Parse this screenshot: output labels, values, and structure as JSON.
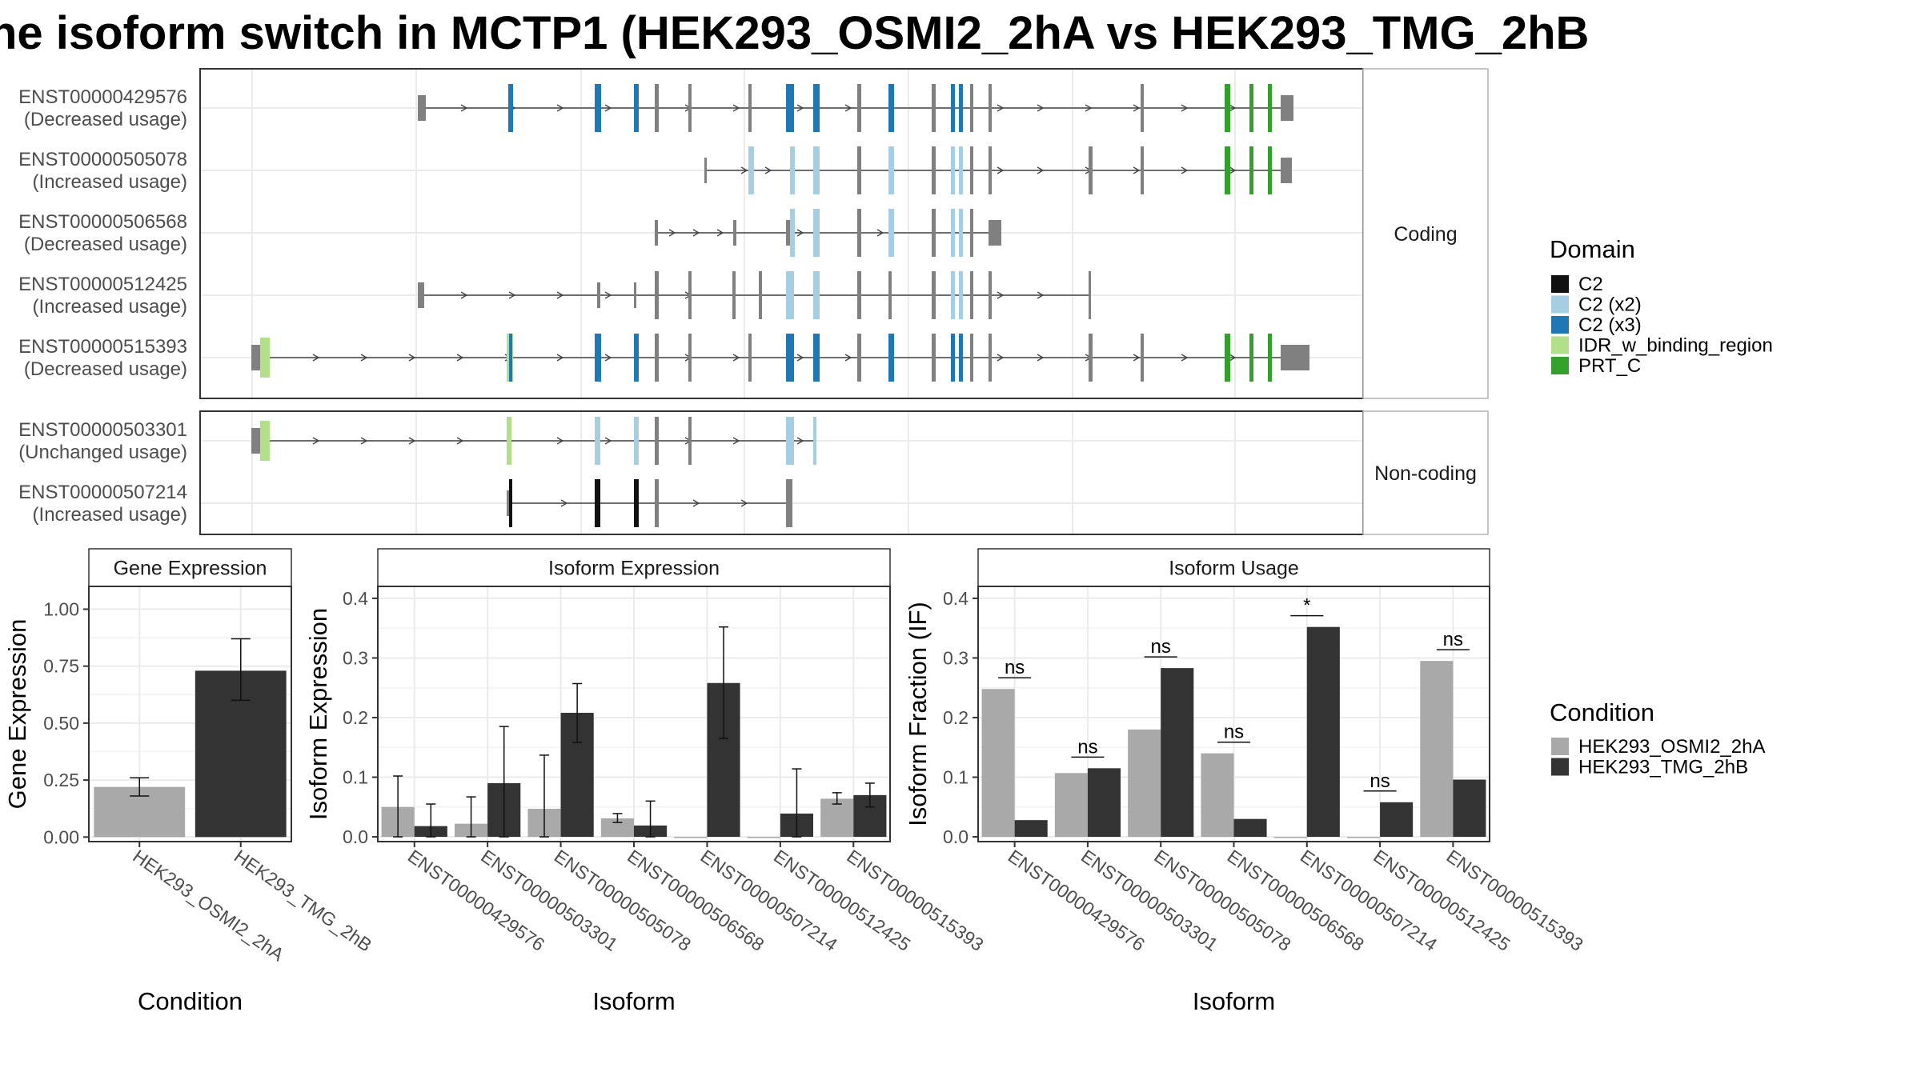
{
  "title": "he isoform switch in MCTP1 (HEK293_OSMI2_2hA vs HEK293_TMG_2hB",
  "colors": {
    "domain": {
      "C2": "#111111",
      "C2 (x2)": "#a6cee3",
      "C2 (x3)": "#1f78b4",
      "IDR_w_binding_region": "#b2df8a",
      "PRT_C": "#33a02c"
    },
    "exon": "#808080",
    "utr": "#808080",
    "cond1": "#a9a9a9",
    "cond2": "#333333",
    "strip_bg": "#ffffff",
    "grid": "#ebebeb"
  },
  "structure": {
    "groups": [
      {
        "label": "Coding",
        "rows": [
          {
            "id": "ENST00000429576",
            "usage": "(Decreased usage)"
          },
          {
            "id": "ENST00000505078",
            "usage": "(Increased usage)"
          },
          {
            "id": "ENST00000506568",
            "usage": "(Decreased usage)"
          },
          {
            "id": "ENST00000512425",
            "usage": "(Increased usage)"
          },
          {
            "id": "ENST00000515393",
            "usage": "(Decreased usage)"
          }
        ]
      },
      {
        "label": "Non-coding",
        "rows": [
          {
            "id": "ENST00000503301",
            "usage": "(Unchanged usage)"
          },
          {
            "id": "ENST00000507214",
            "usage": "(Increased usage)"
          }
        ]
      }
    ],
    "domain_legend": {
      "title": "Domain",
      "items": [
        "C2",
        "C2 (x2)",
        "C2 (x3)",
        "IDR_w_binding_region",
        "PRT_C"
      ]
    }
  },
  "chart_data": [
    {
      "type": "bar",
      "panel": "Gene Expression",
      "categories": [
        "HEK293_OSMI2_2hA",
        "HEK293_TMG_2hB"
      ],
      "values": [
        0.22,
        0.73
      ],
      "errors": [
        [
          0.18,
          0.26
        ],
        [
          0.6,
          0.87
        ]
      ],
      "xlabel": "Condition",
      "ylabel": "Gene Expression",
      "ylim": [
        -0.02,
        1.1
      ],
      "yticks": [
        "0.00",
        "0.25",
        "0.50",
        "0.75",
        "1.00"
      ],
      "ytick_values": [
        0,
        0.25,
        0.5,
        0.75,
        1.0
      ]
    },
    {
      "type": "bar",
      "panel": "Isoform Expression",
      "categories": [
        "ENST00000429576",
        "ENST00000503301",
        "ENST00000505078",
        "ENST00000506568",
        "ENST00000507214",
        "ENST00000512425",
        "ENST00000515393"
      ],
      "series": [
        {
          "name": "HEK293_OSMI2_2hA",
          "values": [
            0.05,
            0.022,
            0.047,
            0.031,
            0,
            0,
            0.064
          ],
          "errors": [
            [
              0,
              0.102
            ],
            [
              0,
              0.067
            ],
            [
              0,
              0.137
            ],
            [
              0.024,
              0.039
            ],
            [
              0,
              0
            ],
            [
              0,
              0
            ],
            [
              0.055,
              0.074
            ]
          ]
        },
        {
          "name": "HEK293_TMG_2hB",
          "values": [
            0.018,
            0.09,
            0.208,
            0.019,
            0.258,
            0.039,
            0.07
          ],
          "errors": [
            [
              0,
              0.055
            ],
            [
              0,
              0.185
            ],
            [
              0.158,
              0.257
            ],
            [
              0,
              0.06
            ],
            [
              0.165,
              0.352
            ],
            [
              0,
              0.114
            ],
            [
              0.05,
              0.09
            ]
          ]
        }
      ],
      "xlabel": "Isoform",
      "ylabel": "Isoform Expression",
      "ylim": [
        -0.008,
        0.42
      ],
      "yticks": [
        "0.0",
        "0.1",
        "0.2",
        "0.3",
        "0.4"
      ],
      "ytick_values": [
        0,
        0.1,
        0.2,
        0.3,
        0.4
      ]
    },
    {
      "type": "bar",
      "panel": "Isoform Usage",
      "categories": [
        "ENST00000429576",
        "ENST00000503301",
        "ENST00000505078",
        "ENST00000506568",
        "ENST00000507214",
        "ENST00000512425",
        "ENST00000515393"
      ],
      "series": [
        {
          "name": "HEK293_OSMI2_2hA",
          "values": [
            0.248,
            0.107,
            0.18,
            0.14,
            0,
            0,
            0.295
          ]
        },
        {
          "name": "HEK293_TMG_2hB",
          "values": [
            0.028,
            0.115,
            0.283,
            0.03,
            0.352,
            0.058,
            0.096
          ]
        }
      ],
      "significance": [
        "ns",
        "ns",
        "ns",
        "ns",
        "*",
        "ns",
        "ns"
      ],
      "xlabel": "Isoform",
      "ylabel": "Isoform Fraction (IF)",
      "ylim": [
        -0.008,
        0.42
      ],
      "yticks": [
        "0.0",
        "0.1",
        "0.2",
        "0.3",
        "0.4"
      ],
      "ytick_values": [
        0,
        0.1,
        0.2,
        0.3,
        0.4
      ]
    }
  ],
  "condition_legend": {
    "title": "Condition",
    "items": [
      "HEK293_OSMI2_2hA",
      "HEK293_TMG_2hB"
    ]
  }
}
